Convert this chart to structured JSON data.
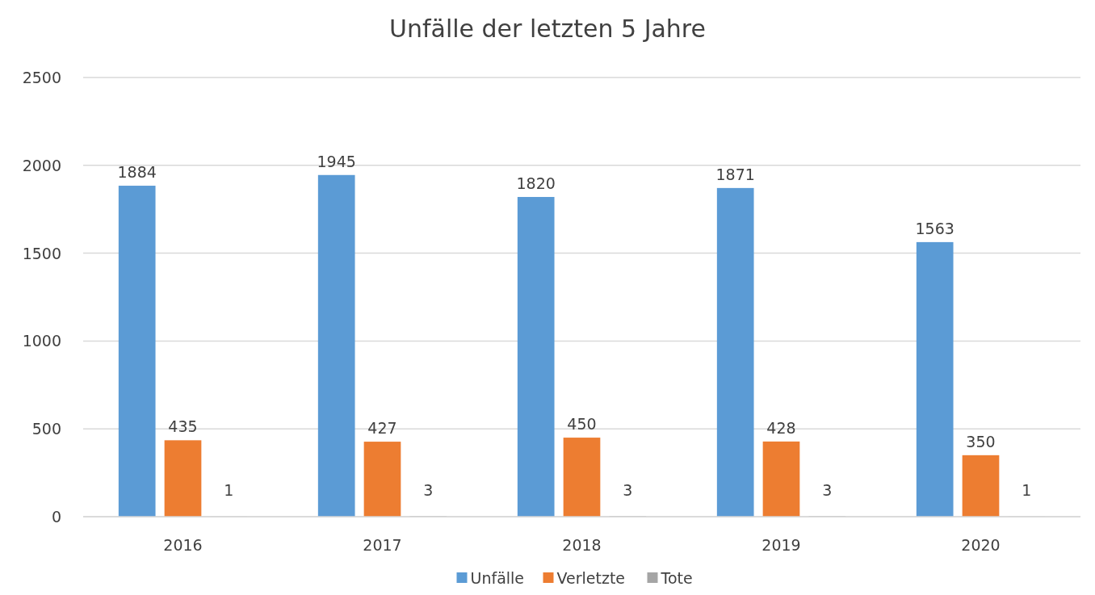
{
  "chart_data": {
    "type": "bar",
    "title": "Unfälle der letzten 5 Jahre",
    "categories": [
      "2016",
      "2017",
      "2018",
      "2019",
      "2020"
    ],
    "series": [
      {
        "name": "Unfälle",
        "color": "#5b9bd5",
        "values": [
          1884,
          1945,
          1820,
          1871,
          1563
        ]
      },
      {
        "name": "Verletzte",
        "color": "#ed7d31",
        "values": [
          435,
          427,
          450,
          428,
          350
        ]
      },
      {
        "name": "Tote",
        "color": "#a5a5a5",
        "values": [
          1,
          3,
          3,
          3,
          1
        ]
      }
    ],
    "ylim": [
      0,
      2500
    ],
    "yticks": [
      0,
      500,
      1000,
      1500,
      2000,
      2500
    ],
    "grid": "y",
    "legend": "bottom",
    "data_labels": true
  }
}
